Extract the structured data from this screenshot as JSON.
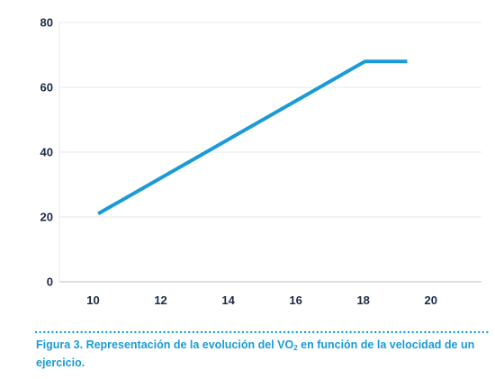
{
  "colors": {
    "line": "#1a9bd7",
    "grid": "#e6e8ec",
    "axis": "#cfd4da",
    "ticks": "#1d2b45",
    "caption": "#1a9bd7",
    "dots": "#1a9bd7"
  },
  "chart_data": {
    "type": "line",
    "x": [
      10.15,
      18.05,
      19.3
    ],
    "series": [
      {
        "values": [
          21,
          68,
          68
        ]
      }
    ],
    "xlim": [
      9.0,
      21.5
    ],
    "ylim": [
      0,
      80
    ],
    "xticks": [
      10,
      12,
      14,
      16,
      18,
      20
    ],
    "yticks": [
      0,
      20,
      40,
      60,
      80
    ],
    "grid": "horizontal",
    "title": "",
    "xlabel": "",
    "ylabel": ""
  },
  "caption": {
    "prefix": "Figura 3. Representación de la evolución del VO",
    "subscript": "2",
    "suffix": " en función de la velocidad de un ejercicio."
  }
}
